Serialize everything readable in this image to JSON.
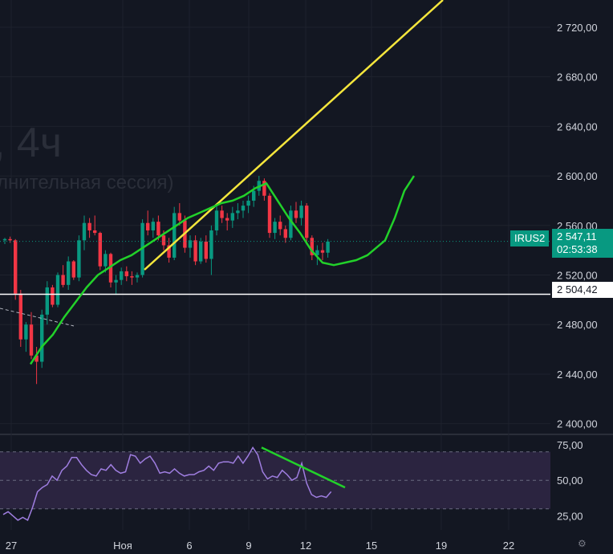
{
  "watermark": {
    "title": ", 4ч",
    "session": "лнительная сессия)"
  },
  "symbol": "IRUS2",
  "current_price": "2 547,11",
  "countdown": "02:53:38",
  "level_label": "2 504,42",
  "colors": {
    "up": "#089981",
    "down": "#f23645",
    "bg": "#131722",
    "ma": "#22d12a",
    "trend": "#f5e63c",
    "rsi": "#9f7ee0"
  },
  "chart_data": [
    {
      "type": "candlestick",
      "yticks": [
        "2 720,00",
        "2 680,00",
        "2 640,00",
        "2 600,00",
        "2 560,00",
        "2 520,00",
        "2 480,00",
        "2 440,00",
        "2 400,00"
      ],
      "ylim": [
        2392,
        2742
      ],
      "xticks": [
        "27",
        "Ноя",
        "6",
        "9",
        "12",
        "15",
        "19",
        "22"
      ],
      "candles": [
        [
          2548,
          2550,
          2545,
          2549
        ],
        [
          2549,
          2551,
          2546,
          2548
        ],
        [
          2548,
          2549,
          2500,
          2505
        ],
        [
          2505,
          2508,
          2462,
          2468
        ],
        [
          2468,
          2482,
          2458,
          2480
        ],
        [
          2480,
          2490,
          2452,
          2455
        ],
        [
          2455,
          2462,
          2432,
          2450
        ],
        [
          2450,
          2492,
          2445,
          2488
        ],
        [
          2488,
          2515,
          2480,
          2510
        ],
        [
          2510,
          2512,
          2494,
          2496
        ],
        [
          2496,
          2522,
          2494,
          2520
        ],
        [
          2520,
          2528,
          2510,
          2512
        ],
        [
          2512,
          2535,
          2508,
          2531
        ],
        [
          2531,
          2532,
          2516,
          2518
        ],
        [
          2518,
          2552,
          2515,
          2548
        ],
        [
          2548,
          2568,
          2540,
          2562
        ],
        [
          2562,
          2566,
          2550,
          2556
        ],
        [
          2556,
          2568,
          2552,
          2554
        ],
        [
          2554,
          2555,
          2524,
          2527
        ],
        [
          2527,
          2540,
          2522,
          2537
        ],
        [
          2537,
          2538,
          2510,
          2514
        ],
        [
          2514,
          2520,
          2504,
          2516
        ],
        [
          2516,
          2526,
          2512,
          2523
        ],
        [
          2523,
          2527,
          2515,
          2519
        ],
        [
          2519,
          2523,
          2512,
          2518
        ],
        [
          2518,
          2522,
          2514,
          2520
        ],
        [
          2520,
          2565,
          2518,
          2562
        ],
        [
          2562,
          2572,
          2552,
          2556
        ],
        [
          2556,
          2566,
          2550,
          2563
        ],
        [
          2563,
          2568,
          2548,
          2552
        ],
        [
          2552,
          2556,
          2540,
          2544
        ],
        [
          2544,
          2550,
          2530,
          2534
        ],
        [
          2534,
          2575,
          2532,
          2570
        ],
        [
          2570,
          2578,
          2560,
          2564
        ],
        [
          2564,
          2568,
          2538,
          2542
        ],
        [
          2542,
          2552,
          2534,
          2548
        ],
        [
          2548,
          2552,
          2528,
          2531
        ],
        [
          2531,
          2550,
          2529,
          2547
        ],
        [
          2547,
          2552,
          2530,
          2533
        ],
        [
          2533,
          2560,
          2520,
          2556
        ],
        [
          2556,
          2576,
          2552,
          2572
        ],
        [
          2572,
          2576,
          2562,
          2566
        ],
        [
          2566,
          2570,
          2556,
          2564
        ],
        [
          2564,
          2575,
          2558,
          2570
        ],
        [
          2570,
          2578,
          2565,
          2572
        ],
        [
          2572,
          2580,
          2566,
          2576
        ],
        [
          2576,
          2584,
          2570,
          2580
        ],
        [
          2580,
          2592,
          2575,
          2588
        ],
        [
          2588,
          2600,
          2584,
          2596
        ],
        [
          2596,
          2598,
          2580,
          2584
        ],
        [
          2584,
          2586,
          2550,
          2554
        ],
        [
          2554,
          2566,
          2549,
          2563
        ],
        [
          2563,
          2568,
          2552,
          2557
        ],
        [
          2557,
          2560,
          2546,
          2550
        ],
        [
          2550,
          2576,
          2548,
          2572
        ],
        [
          2572,
          2579,
          2562,
          2566
        ],
        [
          2566,
          2580,
          2560,
          2576
        ],
        [
          2576,
          2578,
          2546,
          2550
        ],
        [
          2550,
          2552,
          2532,
          2536
        ],
        [
          2536,
          2544,
          2528,
          2540
        ],
        [
          2540,
          2546,
          2532,
          2538
        ],
        [
          2538,
          2549,
          2534,
          2547
        ]
      ],
      "moving_average": [
        2448,
        2462,
        2472,
        2486,
        2498,
        2510,
        2520,
        2526,
        2532,
        2536,
        2542,
        2548,
        2554,
        2560,
        2566,
        2570,
        2574,
        2578,
        2580,
        2584,
        2590,
        2594,
        2580,
        2566,
        2554,
        2540,
        2530,
        2528,
        2530,
        2532,
        2536,
        2548,
        2566,
        2588,
        2600
      ],
      "horizontal_level": 2504.42,
      "current_price": 2547.11
    },
    {
      "type": "line",
      "name": "RSI",
      "yticks": [
        "75,00",
        "50,00",
        "25,00"
      ],
      "ylim": [
        18,
        80
      ],
      "bands": [
        70,
        50,
        30
      ],
      "values": [
        26,
        28,
        25,
        22,
        24,
        22,
        31,
        42,
        45,
        47,
        53,
        50,
        57,
        60,
        66,
        66,
        61,
        57,
        54,
        53,
        58,
        57,
        61,
        57,
        55,
        56,
        68,
        67,
        62,
        65,
        67,
        62,
        55,
        56,
        55,
        58,
        55,
        53,
        54,
        54,
        56,
        57,
        60,
        57,
        62,
        63,
        63,
        62,
        67,
        62,
        67,
        73,
        68,
        56,
        51,
        53,
        52,
        57,
        54,
        50,
        52,
        62,
        48,
        40,
        38,
        39,
        38,
        42
      ]
    }
  ]
}
